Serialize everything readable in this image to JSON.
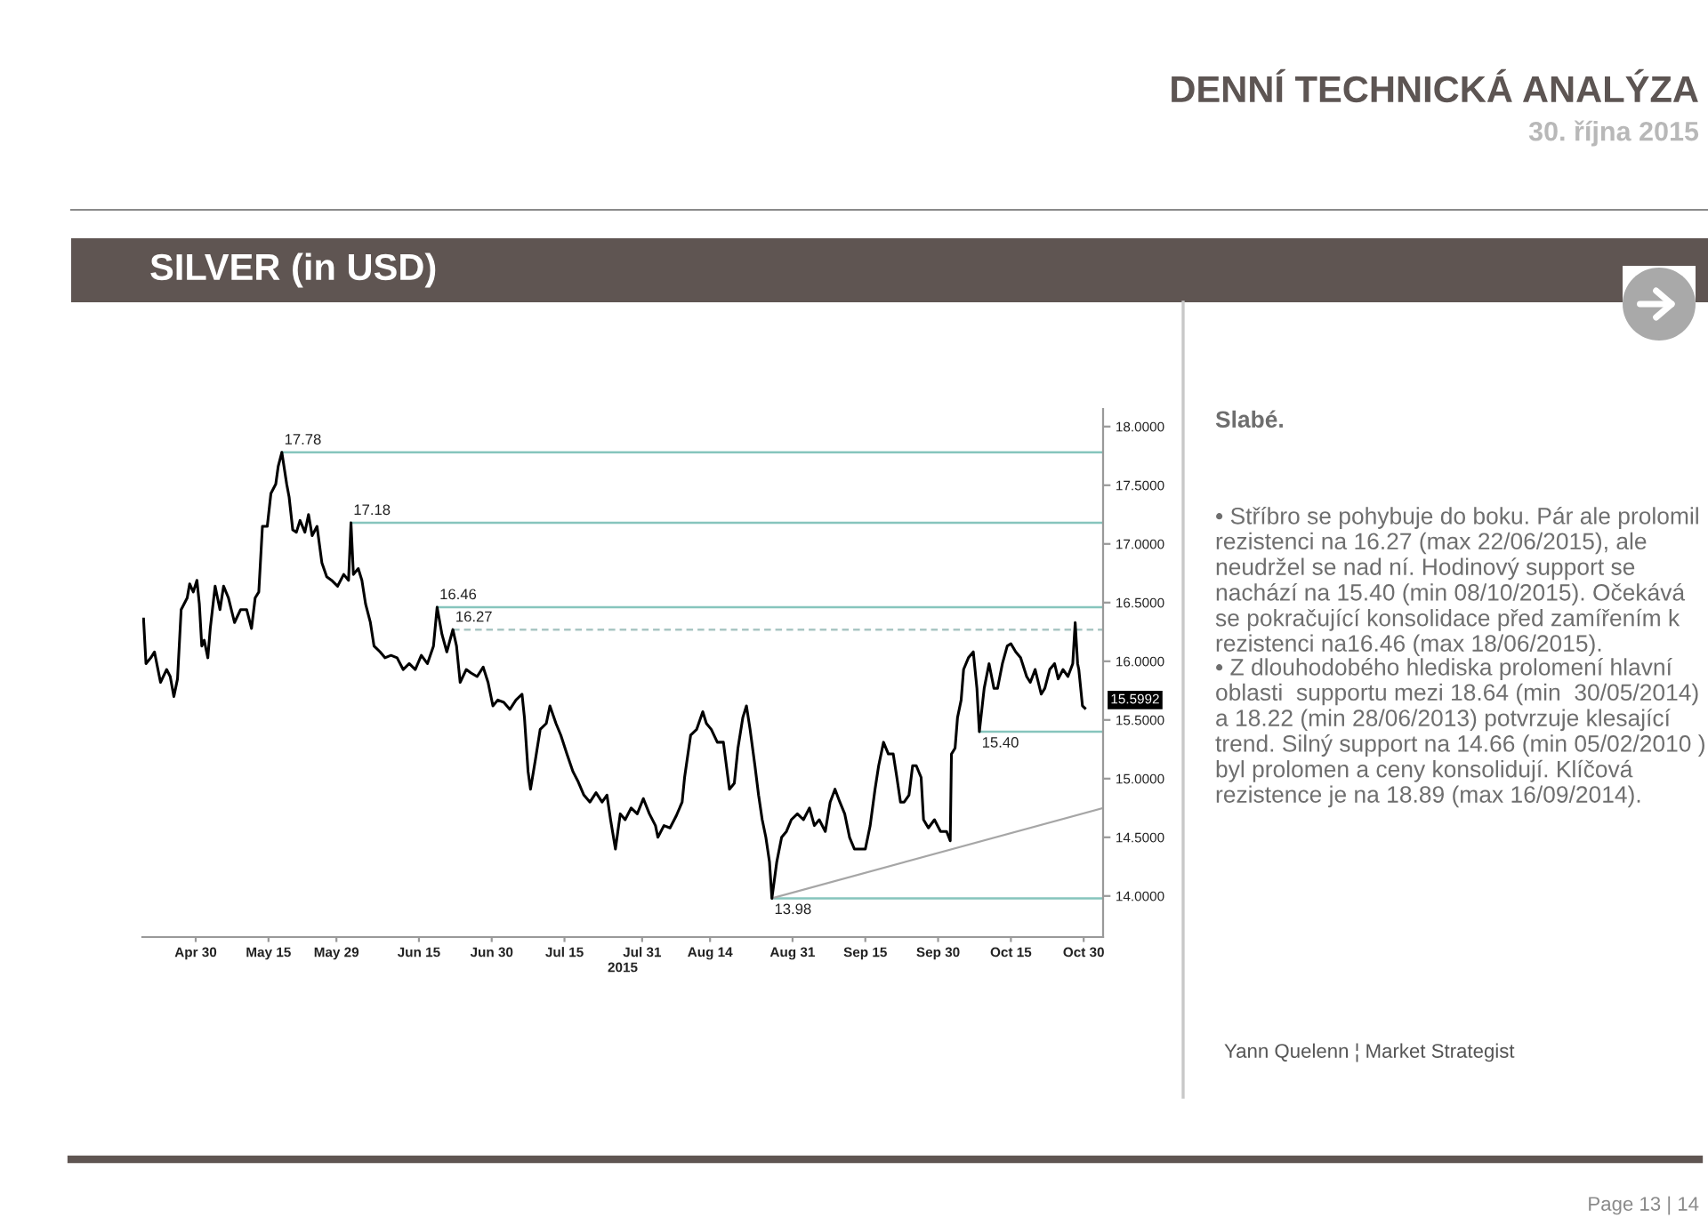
{
  "chart_data": {
    "type": "line",
    "title": "SILVER (in USD)",
    "xlabel": "2015",
    "x": [
      "2015-04-19T06:00",
      "2015-04-19T18:00",
      "2015-04-20T18:00",
      "2015-04-21T12:00",
      "2015-04-22T18:00",
      "2015-04-24T00:00",
      "2015-04-24T18:00",
      "2015-04-25T12:00",
      "2015-04-26T06:00",
      "2015-04-27T00:00",
      "2015-04-28T06:00",
      "2015-04-28T18:00",
      "2015-04-29T12:00",
      "2015-04-30T06:00",
      "2015-04-30T18:00",
      "2015-05-01T06:00",
      "2015-05-01T18:00",
      "2015-05-02T12:00",
      "2015-05-03T00:00",
      "2015-05-04T00:00",
      "2015-05-05T00:00",
      "2015-05-05T18:00",
      "2015-05-06T18:00",
      "2015-05-08T00:00",
      "2015-05-09T06:00",
      "2015-05-10T12:00",
      "2015-05-11T12:00",
      "2015-05-12T06:00",
      "2015-05-13T00:00",
      "2015-05-13T18:00",
      "2015-05-14T18:00",
      "2015-05-15T12:00",
      "2015-05-16T12:00",
      "2015-05-17T00:00",
      "2015-05-17T18:00",
      "2015-05-18T18:00",
      "2015-05-19T06:00",
      "2015-05-20T00:00",
      "2015-05-20T18:00",
      "2015-05-21T12:00",
      "2015-05-22T12:00",
      "2015-05-23T06:00",
      "2015-05-24T00:00",
      "2015-05-25T00:00",
      "2015-05-26T00:00",
      "2015-05-27T00:00",
      "2015-05-28T00:00",
      "2015-05-29T06:00",
      "2015-05-30T12:00",
      "2015-05-31T12:00",
      "2015-06-01T00:00",
      "2015-06-01T12:00",
      "2015-06-02T12:00",
      "2015-06-03T06:00",
      "2015-06-04T00:00",
      "2015-06-05T00:00",
      "2015-06-05T18:00",
      "2015-06-07T00:00",
      "2015-06-08T00:00",
      "2015-06-09T06:00",
      "2015-06-10T12:00",
      "2015-06-11T18:00",
      "2015-06-13T00:00",
      "2015-06-14T06:00",
      "2015-06-15T12:00",
      "2015-06-16T18:00",
      "2015-06-18T00:00",
      "2015-06-18T18:00",
      "2015-06-19T18:00",
      "2015-06-20T18:00",
      "2015-06-22T00:00",
      "2015-06-22T18:00",
      "2015-06-23T12:00",
      "2015-06-24T18:00",
      "2015-06-25T18:00",
      "2015-06-27T00:00",
      "2015-06-28T06:00",
      "2015-06-29T06:00",
      "2015-06-30T06:00",
      "2015-07-01T06:00",
      "2015-07-02T12:00",
      "2015-07-03T18:00",
      "2015-07-05T00:00",
      "2015-07-06T06:00",
      "2015-07-06T18:00",
      "2015-07-07T12:00",
      "2015-07-08T00:00",
      "2015-07-09T00:00",
      "2015-07-10T00:00",
      "2015-07-11T06:00",
      "2015-07-12T00:00",
      "2015-07-13T06:00",
      "2015-07-14T06:00",
      "2015-07-15T12:00",
      "2015-07-16T18:00",
      "2015-07-17T18:00",
      "2015-07-19T00:00",
      "2015-07-20T06:00",
      "2015-07-21T12:00",
      "2015-07-22T18:00",
      "2015-07-23T18:00",
      "2015-07-24T12:00",
      "2015-07-25T12:00",
      "2015-07-26T12:00",
      "2015-07-27T12:00",
      "2015-07-28T18:00",
      "2015-07-30T00:00",
      "2015-07-31T06:00",
      "2015-08-01T12:00",
      "2015-08-02T18:00",
      "2015-08-03T06:00",
      "2015-08-04T12:00",
      "2015-08-05T18:00",
      "2015-08-07T00:00",
      "2015-08-08T06:00",
      "2015-08-08T18:00",
      "2015-08-10T00:00",
      "2015-08-11T06:00",
      "2015-08-12T12:00",
      "2015-08-13T06:00",
      "2015-08-14T06:00",
      "2015-08-15T12:00",
      "2015-08-16T18:00",
      "2015-08-18T00:00",
      "2015-08-19T00:00",
      "2015-08-19T18:00",
      "2015-08-20T18:00",
      "2015-08-21T12:00",
      "2015-08-22T06:00",
      "2015-08-23T06:00",
      "2015-08-24T00:00",
      "2015-08-24T18:00",
      "2015-08-25T12:00",
      "2015-08-26T06:00",
      "2015-08-26T18:00",
      "2015-08-27T18:00",
      "2015-08-28T18:00",
      "2015-08-29T18:00",
      "2015-08-30T18:00",
      "2015-09-01T00:00",
      "2015-09-02T06:00",
      "2015-09-03T12:00",
      "2015-09-04T12:00",
      "2015-09-05T12:00",
      "2015-09-06T18:00",
      "2015-09-07T18:00",
      "2015-09-08T18:00",
      "2015-09-09T18:00",
      "2015-09-10T18:00",
      "2015-09-11T18:00",
      "2015-09-12T18:00",
      "2015-09-14T00:00",
      "2015-09-15T00:00",
      "2015-09-16T00:00",
      "2015-09-17T00:00",
      "2015-09-17T18:00",
      "2015-09-18T18:00",
      "2015-09-19T18:00",
      "2015-09-20T18:00",
      "2015-09-21T12:00",
      "2015-09-22T06:00",
      "2015-09-23T00:00",
      "2015-09-24T00:00",
      "2015-09-24T18:00",
      "2015-09-25T12:00",
      "2015-09-26T12:00",
      "2015-09-27T00:00",
      "2015-09-28T00:00",
      "2015-09-29T06:00",
      "2015-09-30T12:00",
      "2015-10-01T18:00",
      "2015-10-02T12:00",
      "2015-10-02T18:00",
      "2015-10-03T12:00",
      "2015-10-04T00:00",
      "2015-10-04T18:00",
      "2015-10-05T06:00",
      "2015-10-06T06:00",
      "2015-10-07T06:00",
      "2015-10-08T00:00",
      "2015-10-08T12:00",
      "2015-10-09T12:00",
      "2015-10-10T12:00",
      "2015-10-11T12:00",
      "2015-10-12T06:00",
      "2015-10-13T06:00",
      "2015-10-14T06:00",
      "2015-10-15T00:00",
      "2015-10-16T00:00",
      "2015-10-17T00:00",
      "2015-10-18T06:00",
      "2015-10-19T00:00",
      "2015-10-20T00:00",
      "2015-10-21T06:00",
      "2015-10-22T00:00",
      "2015-10-23T00:00",
      "2015-10-24T00:00",
      "2015-10-24T18:00",
      "2015-10-25T18:00",
      "2015-10-26T18:00",
      "2015-10-27T18:00",
      "2015-10-28T06:00",
      "2015-10-28T18:00",
      "2015-10-29T00:00",
      "2015-10-29T18:00",
      "2015-10-30T06:00"
    ],
    "series": [
      {
        "color": "#000000",
        "values": [
          16.36,
          15.98,
          16.03,
          16.08,
          15.82,
          15.93,
          15.87,
          15.7,
          15.85,
          16.44,
          16.54,
          16.66,
          16.59,
          16.69,
          16.49,
          16.13,
          16.18,
          16.03,
          16.28,
          16.64,
          16.44,
          16.64,
          16.54,
          16.33,
          16.44,
          16.44,
          16.28,
          16.54,
          16.59,
          17.15,
          17.15,
          17.43,
          17.51,
          17.66,
          17.78,
          17.51,
          17.4,
          17.12,
          17.1,
          17.2,
          17.1,
          17.25,
          17.07,
          17.15,
          16.84,
          16.72,
          16.69,
          16.64,
          16.74,
          16.69,
          17.18,
          16.74,
          16.79,
          16.69,
          16.49,
          16.33,
          16.13,
          16.08,
          16.03,
          16.05,
          16.03,
          15.93,
          15.98,
          15.93,
          16.05,
          15.98,
          16.13,
          16.46,
          16.23,
          16.08,
          16.27,
          16.13,
          15.82,
          15.93,
          15.9,
          15.87,
          15.95,
          15.82,
          15.62,
          15.67,
          15.65,
          15.59,
          15.67,
          15.72,
          15.52,
          15.06,
          14.91,
          15.16,
          15.42,
          15.47,
          15.62,
          15.47,
          15.37,
          15.21,
          15.06,
          14.98,
          14.86,
          14.8,
          14.88,
          14.8,
          14.86,
          14.65,
          14.4,
          14.7,
          14.65,
          14.75,
          14.7,
          14.83,
          14.7,
          14.6,
          14.5,
          14.6,
          14.58,
          14.68,
          14.8,
          15.01,
          15.37,
          15.42,
          15.57,
          15.47,
          15.42,
          15.31,
          15.31,
          14.91,
          14.96,
          15.26,
          15.52,
          15.62,
          15.42,
          15.11,
          14.86,
          14.65,
          14.5,
          14.29,
          13.98,
          14.29,
          14.5,
          14.55,
          14.65,
          14.7,
          14.65,
          14.75,
          14.6,
          14.65,
          14.55,
          14.8,
          14.91,
          14.8,
          14.7,
          14.5,
          14.4,
          14.4,
          14.4,
          14.6,
          14.91,
          15.11,
          15.31,
          15.21,
          15.21,
          15.01,
          14.8,
          14.8,
          14.86,
          15.11,
          15.11,
          15.01,
          14.65,
          14.58,
          14.65,
          14.55,
          14.55,
          14.47,
          15.21,
          15.26,
          15.52,
          15.67,
          15.93,
          16.03,
          16.08,
          15.77,
          15.4,
          15.77,
          15.98,
          15.77,
          15.77,
          15.98,
          16.13,
          16.15,
          16.08,
          16.03,
          15.87,
          15.82,
          15.93,
          15.72,
          15.77,
          15.93,
          15.98,
          15.85,
          15.93,
          15.87,
          15.98,
          16.33,
          15.98,
          15.93,
          15.62,
          15.6
        ]
      },
      {
        "type": "line",
        "color": "#a6a6a6",
        "x": [
          "2015-08-26T18:00",
          "2015-11-03"
        ],
        "values": [
          13.98,
          14.75
        ]
      }
    ],
    "xlim": [
      "2015-04-19",
      "2015-11-03"
    ],
    "xticks": [
      {
        "value": "2015-04-30",
        "label": "Apr 30"
      },
      {
        "value": "2015-05-15",
        "label": "May 15"
      },
      {
        "value": "2015-05-29",
        "label": "May 29"
      },
      {
        "value": "2015-06-15",
        "label": "Jun 15"
      },
      {
        "value": "2015-06-30",
        "label": "Jun 30"
      },
      {
        "value": "2015-07-15",
        "label": "Jul 15"
      },
      {
        "value": "2015-07-31",
        "label": "Jul 31"
      },
      {
        "value": "2015-08-14",
        "label": "Aug 14"
      },
      {
        "value": "2015-08-31",
        "label": "Aug 31"
      },
      {
        "value": "2015-09-15",
        "label": "Sep 15"
      },
      {
        "value": "2015-09-30",
        "label": "Sep 30"
      },
      {
        "value": "2015-10-15",
        "label": "Oct 15"
      },
      {
        "value": "2015-10-30",
        "label": "Oct 30"
      }
    ],
    "ylim": [
      13.65,
      18.15
    ],
    "yticks": [
      {
        "value": 14,
        "label": "14.0000"
      },
      {
        "value": 14.5,
        "label": "14.5000"
      },
      {
        "value": 15,
        "label": "15.0000"
      },
      {
        "value": 15.5,
        "label": "15.5000"
      },
      {
        "value": 16,
        "label": "16.0000"
      },
      {
        "value": 16.5,
        "label": "16.5000"
      },
      {
        "value": 17,
        "label": "17.0000"
      },
      {
        "value": 17.5,
        "label": "17.5000"
      },
      {
        "value": 18,
        "label": "18.0000"
      }
    ],
    "ref_lines": [
      {
        "axis": "y",
        "value": 17.78,
        "label": "17.78",
        "color": "#86c5bd"
      },
      {
        "axis": "y",
        "value": 17.18,
        "label": "17.18",
        "color": "#86c5bd"
      },
      {
        "axis": "y",
        "value": 16.46,
        "label": "16.46",
        "color": "#86c5bd"
      },
      {
        "axis": "y",
        "value": 16.27,
        "label": "16.27",
        "color": "#a9c6c3",
        "line_style": "dashed"
      },
      {
        "axis": "y",
        "value": 15.4,
        "label": "15.40",
        "color": "#86c5bd"
      },
      {
        "axis": "y",
        "value": 13.98,
        "label": "13.98",
        "color": "#86c5bd"
      }
    ],
    "annotations": [
      "DENNÍ TECHNICKÁ ANALÝZA",
      "30. října 2015",
      "Slabé.",
      "• Stříbro se pohybuje do boku. Pár ale prolomil rezistenci na 16.27 (max 22/06/2015), ale neudržel se nad ní. Hodinový support se nachází na 15.40 (min 08/10/2015). Očekává se pokračující konsolidace před zamířením k rezistenci na16.46 (max 18/06/2015).",
      "• Z dlouhodobého hlediska prolomení hlavní oblasti  supportu mezi 18.64 (min  30/05/2014) a 18.22 (min 28/06/2013) potvrzuje klesající trend. Silný support na 14.66 (min 05/02/2010 ) byl prolomen a ceny konsolidují. Klíčová rezistence je na 18.89 (max 16/09/2014).",
      "Yann Quelenn ¦ Market Strategist",
      "Page 13 | 14",
      {
        "text": "15.5992",
        "x": "2015-10-30T06:00",
        "y": 15.5992
      }
    ]
  }
}
